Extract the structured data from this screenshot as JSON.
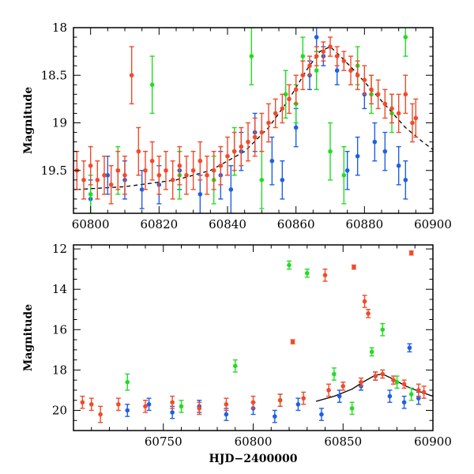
{
  "chart_data": [
    {
      "type": "scatter",
      "title": "",
      "xlabel": "",
      "ylabel": "Magnitude",
      "xlim": [
        60795,
        60900
      ],
      "ylim": [
        19.95,
        18.0
      ],
      "y_inverted": true,
      "xticks": [
        60800,
        60820,
        60840,
        60860,
        60880,
        60900
      ],
      "yticks": [
        18,
        18.5,
        19,
        19.5
      ],
      "series": [
        {
          "color": "#1f5fe6",
          "points": [
            {
              "x": 60800,
              "y": 19.8,
              "e": 0.2
            },
            {
              "x": 60805,
              "y": 19.55,
              "e": 0.2
            },
            {
              "x": 60810,
              "y": 19.6,
              "e": 0.2
            },
            {
              "x": 60815,
              "y": 19.7,
              "e": 0.2
            },
            {
              "x": 60820,
              "y": 19.65,
              "e": 0.2
            },
            {
              "x": 60826,
              "y": 19.5,
              "e": 0.2
            },
            {
              "x": 60832,
              "y": 19.75,
              "e": 0.2
            },
            {
              "x": 60838,
              "y": 19.55,
              "e": 0.25
            },
            {
              "x": 60841,
              "y": 19.7,
              "e": 0.25
            },
            {
              "x": 60844,
              "y": 19.3,
              "e": 0.2
            },
            {
              "x": 60848,
              "y": 19.1,
              "e": 0.2
            },
            {
              "x": 60853,
              "y": 19.4,
              "e": 0.25
            },
            {
              "x": 60856,
              "y": 19.6,
              "e": 0.2
            },
            {
              "x": 60860,
              "y": 19.05,
              "e": 0.2
            },
            {
              "x": 60864,
              "y": 18.5,
              "e": 0.15
            },
            {
              "x": 60866,
              "y": 18.1,
              "e": 0.15
            },
            {
              "x": 60868,
              "y": 18.3,
              "e": 0.1
            },
            {
              "x": 60872,
              "y": 18.45,
              "e": 0.15
            },
            {
              "x": 60875,
              "y": 19.5,
              "e": 0.2
            },
            {
              "x": 60878,
              "y": 19.35,
              "e": 0.2
            },
            {
              "x": 60880,
              "y": 18.7,
              "e": 0.15
            },
            {
              "x": 60883,
              "y": 19.2,
              "e": 0.2
            },
            {
              "x": 60886,
              "y": 19.3,
              "e": 0.2
            },
            {
              "x": 60890,
              "y": 19.45,
              "e": 0.2
            },
            {
              "x": 60892,
              "y": 19.6,
              "e": 0.2
            }
          ]
        },
        {
          "color": "#22dd22",
          "points": [
            {
              "x": 60800,
              "y": 19.75,
              "e": 0.2
            },
            {
              "x": 60808,
              "y": 19.5,
              "e": 0.25
            },
            {
              "x": 60818,
              "y": 18.6,
              "e": 0.3
            },
            {
              "x": 60826,
              "y": 19.55,
              "e": 0.25
            },
            {
              "x": 60836,
              "y": 19.6,
              "e": 0.25
            },
            {
              "x": 60842,
              "y": 19.3,
              "e": 0.25
            },
            {
              "x": 60847,
              "y": 18.3,
              "e": 0.3
            },
            {
              "x": 60850,
              "y": 19.6,
              "e": 0.3
            },
            {
              "x": 60857,
              "y": 18.7,
              "e": 0.25
            },
            {
              "x": 60860,
              "y": 18.8,
              "e": 0.2
            },
            {
              "x": 60862,
              "y": 18.3,
              "e": 0.2
            },
            {
              "x": 60866,
              "y": 18.45,
              "e": 0.2
            },
            {
              "x": 60870,
              "y": 19.3,
              "e": 0.3
            },
            {
              "x": 60874,
              "y": 19.55,
              "e": 0.3
            },
            {
              "x": 60878,
              "y": 18.4,
              "e": 0.2
            },
            {
              "x": 60882,
              "y": 18.7,
              "e": 0.2
            },
            {
              "x": 60888,
              "y": 18.9,
              "e": 0.2
            },
            {
              "x": 60892,
              "y": 18.1,
              "e": 0.2
            }
          ]
        },
        {
          "color": "#f24a2a",
          "points": [
            {
              "x": 60796,
              "y": 19.5,
              "e": 0.2
            },
            {
              "x": 60798,
              "y": 19.6,
              "e": 0.2
            },
            {
              "x": 60800,
              "y": 19.45,
              "e": 0.2
            },
            {
              "x": 60802,
              "y": 19.6,
              "e": 0.2
            },
            {
              "x": 60804,
              "y": 19.55,
              "e": 0.2
            },
            {
              "x": 60806,
              "y": 19.65,
              "e": 0.2
            },
            {
              "x": 60808,
              "y": 19.5,
              "e": 0.2
            },
            {
              "x": 60810,
              "y": 19.55,
              "e": 0.2
            },
            {
              "x": 60812,
              "y": 18.5,
              "e": 0.3
            },
            {
              "x": 60814,
              "y": 19.3,
              "e": 0.25
            },
            {
              "x": 60816,
              "y": 19.5,
              "e": 0.2
            },
            {
              "x": 60818,
              "y": 19.4,
              "e": 0.2
            },
            {
              "x": 60820,
              "y": 19.55,
              "e": 0.2
            },
            {
              "x": 60822,
              "y": 19.5,
              "e": 0.2
            },
            {
              "x": 60824,
              "y": 19.6,
              "e": 0.2
            },
            {
              "x": 60826,
              "y": 19.45,
              "e": 0.2
            },
            {
              "x": 60828,
              "y": 19.55,
              "e": 0.2
            },
            {
              "x": 60830,
              "y": 19.5,
              "e": 0.2
            },
            {
              "x": 60832,
              "y": 19.4,
              "e": 0.2
            },
            {
              "x": 60834,
              "y": 19.55,
              "e": 0.2
            },
            {
              "x": 60836,
              "y": 19.5,
              "e": 0.2
            },
            {
              "x": 60838,
              "y": 19.45,
              "e": 0.2
            },
            {
              "x": 60840,
              "y": 19.35,
              "e": 0.2
            },
            {
              "x": 60842,
              "y": 19.3,
              "e": 0.2
            },
            {
              "x": 60844,
              "y": 19.25,
              "e": 0.2
            },
            {
              "x": 60846,
              "y": 19.2,
              "e": 0.2
            },
            {
              "x": 60848,
              "y": 19.15,
              "e": 0.2
            },
            {
              "x": 60850,
              "y": 19.1,
              "e": 0.2
            },
            {
              "x": 60852,
              "y": 19.0,
              "e": 0.2
            },
            {
              "x": 60854,
              "y": 18.9,
              "e": 0.15
            },
            {
              "x": 60856,
              "y": 18.85,
              "e": 0.15
            },
            {
              "x": 60858,
              "y": 18.75,
              "e": 0.15
            },
            {
              "x": 60860,
              "y": 18.65,
              "e": 0.15
            },
            {
              "x": 60862,
              "y": 18.5,
              "e": 0.15
            },
            {
              "x": 60864,
              "y": 18.4,
              "e": 0.1
            },
            {
              "x": 60866,
              "y": 18.3,
              "e": 0.1
            },
            {
              "x": 60868,
              "y": 18.25,
              "e": 0.1
            },
            {
              "x": 60870,
              "y": 18.2,
              "e": 0.1
            },
            {
              "x": 60872,
              "y": 18.3,
              "e": 0.1
            },
            {
              "x": 60874,
              "y": 18.35,
              "e": 0.1
            },
            {
              "x": 60876,
              "y": 18.45,
              "e": 0.15
            },
            {
              "x": 60878,
              "y": 18.5,
              "e": 0.15
            },
            {
              "x": 60880,
              "y": 18.55,
              "e": 0.15
            },
            {
              "x": 60882,
              "y": 18.65,
              "e": 0.15
            },
            {
              "x": 60884,
              "y": 18.7,
              "e": 0.15
            },
            {
              "x": 60886,
              "y": 18.8,
              "e": 0.15
            },
            {
              "x": 60888,
              "y": 18.85,
              "e": 0.15
            },
            {
              "x": 60890,
              "y": 18.9,
              "e": 0.2
            },
            {
              "x": 60892,
              "y": 18.7,
              "e": 0.2
            },
            {
              "x": 60894,
              "y": 19.0,
              "e": 0.2
            },
            {
              "x": 60895,
              "y": 18.95,
              "e": 0.2
            }
          ]
        }
      ],
      "model_curve": {
        "color": "#000000",
        "style": "dashed-then-solid",
        "x": [
          60796,
          60810,
          60825,
          60835,
          60845,
          60852,
          60858,
          60863,
          60867,
          60870,
          60873,
          60877,
          60882,
          60887,
          60892,
          60897,
          60900
        ],
        "y": [
          19.7,
          19.67,
          19.6,
          19.5,
          19.3,
          19.05,
          18.75,
          18.45,
          18.25,
          18.2,
          18.3,
          18.45,
          18.65,
          18.85,
          19.05,
          19.2,
          19.28
        ]
      }
    },
    {
      "type": "scatter",
      "title": "",
      "xlabel": "HJD−2400000",
      "ylabel": "Magnitude",
      "xlim": [
        60700,
        60900
      ],
      "ylim": [
        21.0,
        11.8
      ],
      "y_inverted": true,
      "xticks": [
        60750,
        60800,
        60850,
        60900
      ],
      "yticks": [
        12,
        14,
        16,
        18,
        20
      ],
      "series": [
        {
          "color": "#1f5fe6",
          "points": [
            {
              "x": 60730,
              "y": 20.0,
              "e": 0.3
            },
            {
              "x": 60742,
              "y": 19.7,
              "e": 0.3
            },
            {
              "x": 60755,
              "y": 20.1,
              "e": 0.3
            },
            {
              "x": 60770,
              "y": 19.8,
              "e": 0.3
            },
            {
              "x": 60785,
              "y": 20.2,
              "e": 0.3
            },
            {
              "x": 60800,
              "y": 19.9,
              "e": 0.3
            },
            {
              "x": 60812,
              "y": 20.3,
              "e": 0.3
            },
            {
              "x": 60825,
              "y": 19.7,
              "e": 0.3
            },
            {
              "x": 60838,
              "y": 20.2,
              "e": 0.3
            },
            {
              "x": 60848,
              "y": 19.3,
              "e": 0.3
            },
            {
              "x": 60860,
              "y": 18.8,
              "e": 0.2
            },
            {
              "x": 60868,
              "y": 18.3,
              "e": 0.2
            },
            {
              "x": 60876,
              "y": 19.3,
              "e": 0.3
            },
            {
              "x": 60884,
              "y": 19.6,
              "e": 0.3
            },
            {
              "x": 60887,
              "y": 16.9,
              "e": 0.2
            },
            {
              "x": 60892,
              "y": 19.4,
              "e": 0.3
            }
          ]
        },
        {
          "color": "#22dd22",
          "points": [
            {
              "x": 60730,
              "y": 18.6,
              "e": 0.4
            },
            {
              "x": 60760,
              "y": 19.8,
              "e": 0.3
            },
            {
              "x": 60790,
              "y": 17.8,
              "e": 0.3
            },
            {
              "x": 60815,
              "y": 19.5,
              "e": 0.3
            },
            {
              "x": 60820,
              "y": 12.8,
              "e": 0.2
            },
            {
              "x": 60830,
              "y": 13.2,
              "e": 0.2
            },
            {
              "x": 60845,
              "y": 18.2,
              "e": 0.3
            },
            {
              "x": 60855,
              "y": 19.9,
              "e": 0.3
            },
            {
              "x": 60866,
              "y": 17.1,
              "e": 0.2
            },
            {
              "x": 60872,
              "y": 16.0,
              "e": 0.3
            },
            {
              "x": 60880,
              "y": 18.6,
              "e": 0.3
            },
            {
              "x": 60888,
              "y": 19.2,
              "e": 0.3
            }
          ]
        },
        {
          "color": "#f24a2a",
          "points": [
            {
              "x": 60705,
              "y": 19.6,
              "e": 0.3
            },
            {
              "x": 60710,
              "y": 19.7,
              "e": 0.3
            },
            {
              "x": 60715,
              "y": 20.2,
              "e": 0.4
            },
            {
              "x": 60725,
              "y": 19.7,
              "e": 0.3
            },
            {
              "x": 60740,
              "y": 19.8,
              "e": 0.3
            },
            {
              "x": 60755,
              "y": 19.6,
              "e": 0.3
            },
            {
              "x": 60770,
              "y": 19.9,
              "e": 0.3
            },
            {
              "x": 60785,
              "y": 19.7,
              "e": 0.3
            },
            {
              "x": 60800,
              "y": 19.6,
              "e": 0.3
            },
            {
              "x": 60815,
              "y": 19.5,
              "e": 0.3
            },
            {
              "x": 60822,
              "y": 16.6,
              "e": 0.1
            },
            {
              "x": 60828,
              "y": 19.4,
              "e": 0.3
            },
            {
              "x": 60840,
              "y": 13.3,
              "e": 0.3
            },
            {
              "x": 60842,
              "y": 19.0,
              "e": 0.3
            },
            {
              "x": 60850,
              "y": 18.8,
              "e": 0.2
            },
            {
              "x": 60856,
              "y": 12.9,
              "e": 0.1
            },
            {
              "x": 60860,
              "y": 18.6,
              "e": 0.2
            },
            {
              "x": 60862,
              "y": 14.6,
              "e": 0.3
            },
            {
              "x": 60864,
              "y": 15.2,
              "e": 0.2
            },
            {
              "x": 60868,
              "y": 18.3,
              "e": 0.2
            },
            {
              "x": 60872,
              "y": 18.2,
              "e": 0.2
            },
            {
              "x": 60878,
              "y": 18.5,
              "e": 0.2
            },
            {
              "x": 60884,
              "y": 18.7,
              "e": 0.2
            },
            {
              "x": 60888,
              "y": 12.2,
              "e": 0.1
            },
            {
              "x": 60892,
              "y": 19.0,
              "e": 0.3
            },
            {
              "x": 60895,
              "y": 19.1,
              "e": 0.3
            }
          ]
        }
      ],
      "model_curve": {
        "color": "#000000",
        "style": "solid",
        "x": [
          60835,
          60845,
          60855,
          60862,
          60868,
          60872,
          60878,
          60885,
          60892,
          60900
        ],
        "y": [
          19.55,
          19.3,
          18.95,
          18.55,
          18.25,
          18.2,
          18.45,
          18.8,
          19.05,
          19.3
        ]
      }
    }
  ]
}
